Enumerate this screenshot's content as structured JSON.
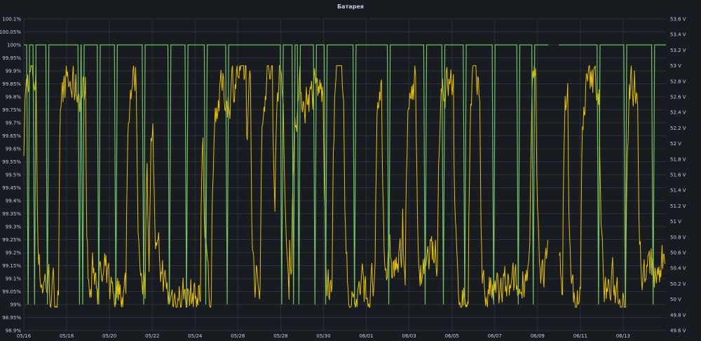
{
  "panel": {
    "title": "Батарея"
  },
  "chart_data": {
    "type": "line",
    "title": "Батарея",
    "grid": true,
    "x_ticks": [
      "05/16",
      "05/18",
      "05/20",
      "05/22",
      "05/24",
      "05/26",
      "05/28",
      "05/30",
      "06/01",
      "06/03",
      "06/05",
      "06/07",
      "06/09",
      "06/11",
      "06/13"
    ],
    "y_left": {
      "unit": "%",
      "range": [
        98.9,
        100.1
      ],
      "ticks": [
        "100.1%",
        "100.05%",
        "100%",
        "99.95%",
        "99.9%",
        "99.85%",
        "99.8%",
        "99.75%",
        "99.7%",
        "99.65%",
        "99.6%",
        "99.55%",
        "99.5%",
        "99.45%",
        "99.4%",
        "99.35%",
        "99.3%",
        "99.25%",
        "99.2%",
        "99.15%",
        "99.1%",
        "99.05%",
        "99%",
        "98.95%",
        "98.9%"
      ]
    },
    "y_right": {
      "unit": "V",
      "range": [
        49.6,
        53.6
      ],
      "ticks": [
        "53.6 V",
        "53.4 V",
        "53.2 V",
        "53 V",
        "52.8 V",
        "52.6 V",
        "52.4 V",
        "52.2 V",
        "52 V",
        "51.8 V",
        "51.6 V",
        "51.4 V",
        "51.2 V",
        "51 V",
        "50.8 V",
        "50.6 V",
        "50.4 V",
        "50.2 V",
        "50 V",
        "49.8 V",
        "49.6 V"
      ]
    },
    "series": [
      {
        "axis": "left",
        "color": "#73bf69",
        "baseline": 100,
        "dip_value": 99,
        "dips_at_day": [
          0.2,
          0.5,
          1.1,
          2.6,
          2.75,
          3.5,
          4.3,
          5.6,
          6.8,
          7.6,
          8.5,
          9.5,
          12.05,
          12.6,
          12.85,
          13.6,
          14.1,
          15.45,
          17.05,
          18.75,
          19.6,
          20.6,
          21.95,
          23.1,
          23.8,
          26.85,
          28.1,
          29.4
        ],
        "gaps": [
          [
            24.5,
            25.0
          ]
        ]
      },
      {
        "axis": "right",
        "color": "#e5c100",
        "typical_range": [
          49.9,
          53.0
        ],
        "gaps": [
          [
            24.5,
            25.0
          ]
        ]
      }
    ]
  }
}
